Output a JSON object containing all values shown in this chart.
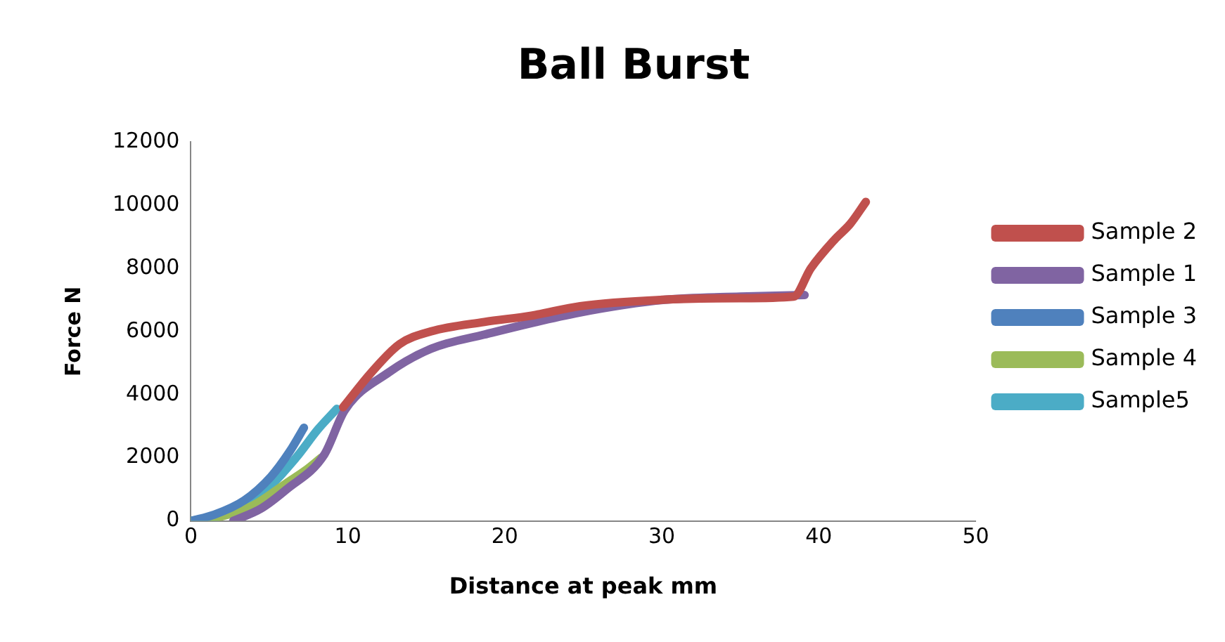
{
  "chart_data": {
    "type": "line",
    "title": "Ball Burst",
    "xlabel": "Distance at peak mm",
    "ylabel": "Force N",
    "xlim": [
      0,
      50
    ],
    "xticks": [
      0,
      10,
      20,
      30,
      40,
      50
    ],
    "ylim": [
      0,
      12000
    ],
    "yticks": [
      0,
      2000,
      4000,
      6000,
      8000,
      10000,
      12000
    ],
    "grid": false,
    "legend": "right",
    "marker": "none",
    "line_style": "solid",
    "series": [
      {
        "name": "Sample 2",
        "color": "#c0504d",
        "x": [
          9.7,
          11.5,
          13.3,
          15.3,
          18.7,
          21.7,
          24.8,
          30,
          35,
          38.4,
          39.5,
          41,
          42,
          43
        ],
        "values": [
          3600,
          4700,
          5600,
          6000,
          6300,
          6500,
          6800,
          7000,
          7050,
          7100,
          8000,
          8900,
          9400,
          10100
        ]
      },
      {
        "name": "Sample 1",
        "color": "#8064a2",
        "x": [
          2.7,
          4.5,
          6.1,
          8.5,
          9.8,
          12.6,
          15.3,
          18.7,
          24.8,
          30.2,
          35,
          39.1
        ],
        "values": [
          0,
          400,
          1000,
          2100,
          3500,
          4700,
          5450,
          5900,
          6600,
          7000,
          7100,
          7150
        ]
      },
      {
        "name": "Sample 3",
        "color": "#4f81bd",
        "x": [
          0,
          1.5,
          3.4,
          5.1,
          6.3,
          7.2
        ],
        "values": [
          0,
          200,
          650,
          1400,
          2200,
          2950
        ]
      },
      {
        "name": "Sample 4",
        "color": "#9bbb59",
        "x": [
          0,
          2,
          4,
          6.1,
          7.3,
          8.3
        ],
        "values": [
          0,
          150,
          500,
          1200,
          1600,
          2000
        ]
      },
      {
        "name": "Sample5",
        "color": "#4bacc6",
        "x": [
          0,
          2.2,
          4.4,
          6.7,
          8.1,
          9.3
        ],
        "values": [
          0,
          200,
          800,
          2000,
          2900,
          3550
        ]
      }
    ]
  }
}
